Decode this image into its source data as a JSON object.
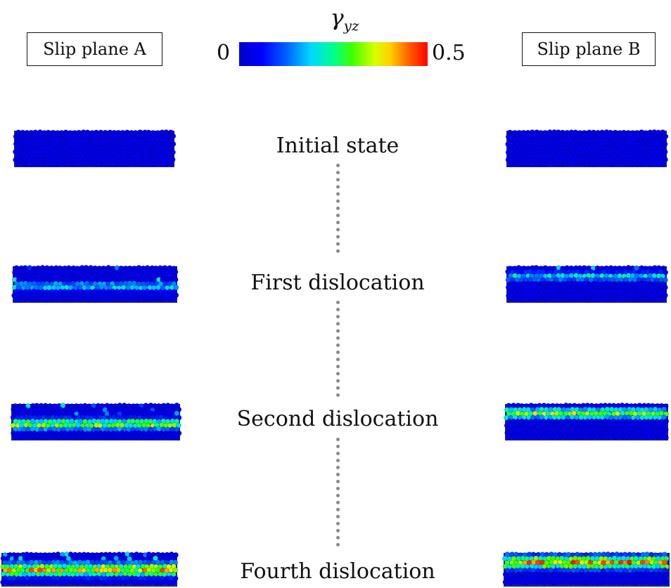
{
  "slip_plane_a_label": "Slip plane A",
  "slip_plane_b_label": "Slip plane B",
  "colorbar": {
    "symbol": "γ",
    "subscript": "yz",
    "min_label": "0",
    "max_label": "0.5",
    "colors": [
      "#0000cc",
      "#0000ff",
      "#0060ff",
      "#00d8ff",
      "#00ff90",
      "#40ff00",
      "#d8ff00",
      "#ffd000",
      "#ff6000",
      "#ff0000"
    ]
  },
  "states": [
    {
      "label": "Initial state",
      "band_strength": 0.0
    },
    {
      "label": "First dislocation",
      "band_strength": 0.45
    },
    {
      "label": "Second dislocation",
      "band_strength": 0.75
    },
    {
      "label": "Fourth dislocation",
      "band_strength": 1.0
    }
  ]
}
